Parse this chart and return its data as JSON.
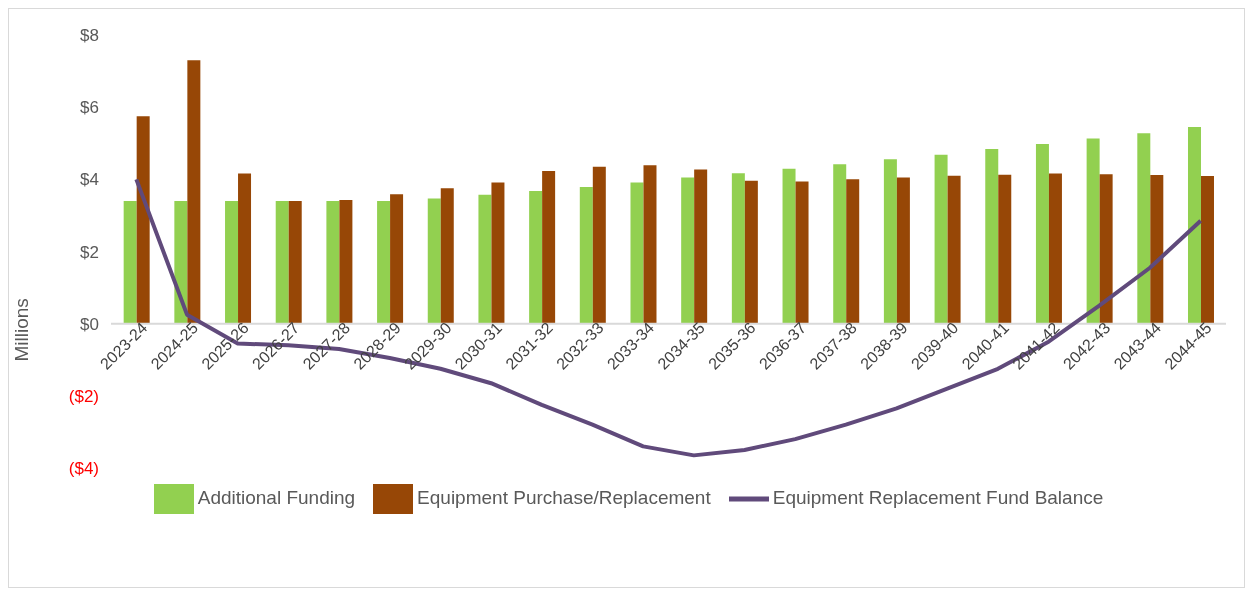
{
  "chart_data": {
    "type": "bar",
    "ylabel": "Millions",
    "categories": [
      "2023-24",
      "2024-25",
      "2025-26",
      "2026-27",
      "2027-28",
      "2028-29",
      "2029-30",
      "2030-31",
      "2031-32",
      "2032-33",
      "2033-34",
      "2034-35",
      "2035-36",
      "2036-37",
      "2037-38",
      "2038-39",
      "2039-40",
      "2040-41",
      "2041-42",
      "2042-43",
      "2043-44",
      "2044-45"
    ],
    "series": [
      {
        "name": "Additional Funding",
        "color": "#92d050",
        "values": [
          3.4,
          3.4,
          3.4,
          3.4,
          3.4,
          3.4,
          3.47,
          3.57,
          3.68,
          3.79,
          3.91,
          4.05,
          4.17,
          4.29,
          4.42,
          4.56,
          4.68,
          4.84,
          4.98,
          5.13,
          5.28,
          5.45
        ]
      },
      {
        "name": "Equipment Purchase/Replacement",
        "color": "#974706",
        "values": [
          5.75,
          7.3,
          4.16,
          3.4,
          3.43,
          3.59,
          3.75,
          3.91,
          4.23,
          4.35,
          4.39,
          4.27,
          3.96,
          3.94,
          4.0,
          4.05,
          4.1,
          4.13,
          4.16,
          4.14,
          4.12,
          4.09
        ]
      },
      {
        "name": "Equipment Replacement Fund Balance",
        "type": "line",
        "color": "#604a7b",
        "values": [
          4.0,
          0.25,
          -0.55,
          -0.6,
          -0.7,
          -0.95,
          -1.25,
          -1.65,
          -2.25,
          -2.8,
          -3.4,
          -3.65,
          -3.5,
          -3.2,
          -2.8,
          -2.35,
          -1.8,
          -1.25,
          -0.5,
          0.5,
          1.55,
          2.85
        ]
      }
    ],
    "ylim": [
      -4,
      8
    ],
    "yticks": [
      {
        "value": -4,
        "label": "($4)"
      },
      {
        "value": -2,
        "label": "($2)"
      },
      {
        "value": 0,
        "label": "$0"
      },
      {
        "value": 2,
        "label": "$2"
      },
      {
        "value": 4,
        "label": "$4"
      },
      {
        "value": 6,
        "label": "$6"
      },
      {
        "value": 8,
        "label": "$8"
      }
    ],
    "legend": "bottom",
    "marker": "none"
  }
}
